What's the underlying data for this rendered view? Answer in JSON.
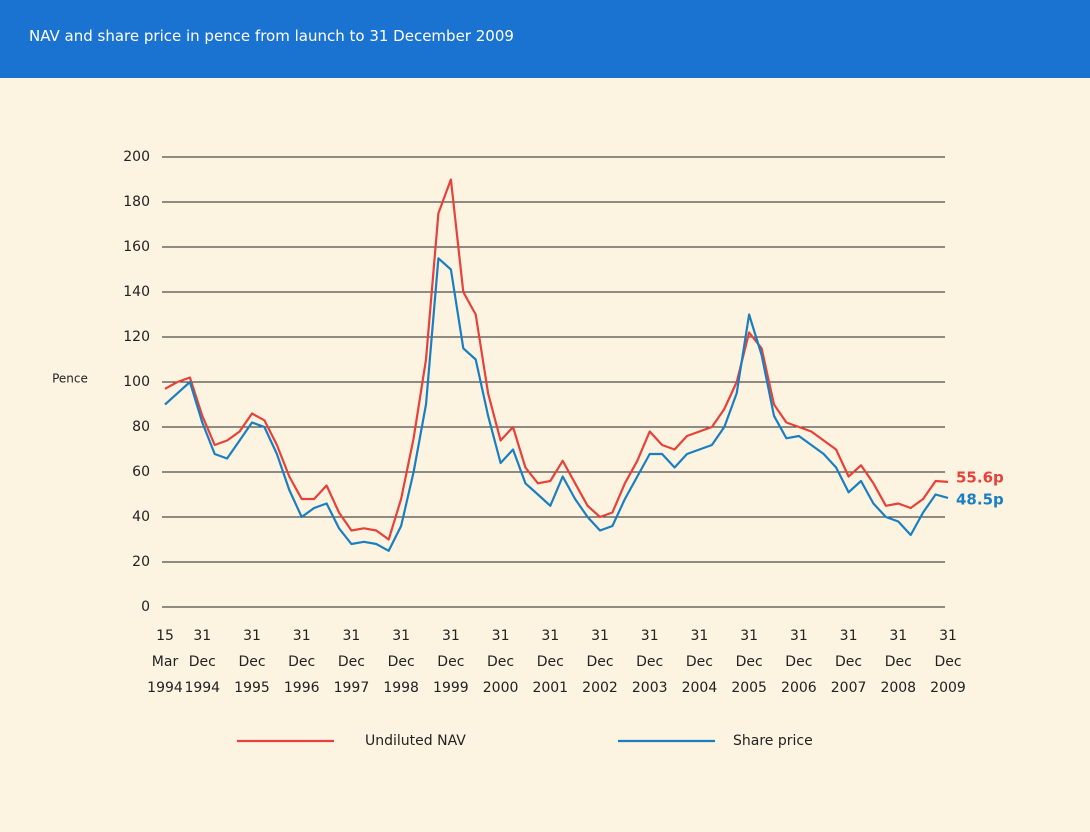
{
  "chart_data": {
    "type": "line",
    "title": "NAV and share price in pence from launch to 31 December 2009",
    "y_label": "Pence",
    "ylim": [
      0,
      200
    ],
    "yticks": [
      0,
      20,
      40,
      60,
      80,
      100,
      120,
      140,
      160,
      180,
      200
    ],
    "grid": true,
    "categories": [
      [
        "15",
        "Mar",
        "1994"
      ],
      null,
      null,
      [
        "31",
        "Dec",
        "1994"
      ],
      null,
      null,
      null,
      [
        "31",
        "Dec",
        "1995"
      ],
      null,
      null,
      null,
      [
        "31",
        "Dec",
        "1996"
      ],
      null,
      null,
      null,
      [
        "31",
        "Dec",
        "1997"
      ],
      null,
      null,
      null,
      [
        "31",
        "Dec",
        "1998"
      ],
      null,
      null,
      null,
      [
        "31",
        "Dec",
        "1999"
      ],
      null,
      null,
      null,
      [
        "31",
        "Dec",
        "2000"
      ],
      null,
      null,
      null,
      [
        "31",
        "Dec",
        "2001"
      ],
      null,
      null,
      null,
      [
        "31",
        "Dec",
        "2002"
      ],
      null,
      null,
      null,
      [
        "31",
        "Dec",
        "2003"
      ],
      null,
      null,
      null,
      [
        "31",
        "Dec",
        "2004"
      ],
      null,
      null,
      null,
      [
        "31",
        "Dec",
        "2005"
      ],
      null,
      null,
      null,
      [
        "31",
        "Dec",
        "2006"
      ],
      null,
      null,
      null,
      [
        "31",
        "Dec",
        "2007"
      ],
      null,
      null,
      null,
      [
        "31",
        "Dec",
        "2008"
      ],
      null,
      null,
      null,
      [
        "31",
        "Dec",
        "2009"
      ]
    ],
    "series": [
      {
        "name": "Undiluted NAV",
        "color": "#e8413a",
        "values": [
          97,
          100,
          102,
          85,
          72,
          74,
          78,
          86,
          83,
          72,
          58,
          48,
          48,
          54,
          42,
          34,
          35,
          34,
          30,
          48,
          75,
          110,
          175,
          190,
          140,
          130,
          95,
          74,
          80,
          62,
          55,
          56,
          65,
          55,
          45,
          40,
          42,
          55,
          65,
          78,
          72,
          70,
          76,
          78,
          80,
          88,
          100,
          122,
          115,
          90,
          82,
          80,
          78,
          74,
          70,
          58,
          63,
          55,
          45,
          46,
          44,
          48,
          56,
          55.6
        ],
        "value_labels": [
          null,
          null,
          null,
          null,
          null,
          null,
          null,
          null,
          null,
          null,
          null,
          null,
          null,
          null,
          null,
          null,
          null,
          null,
          null,
          null,
          null,
          null,
          null,
          null,
          null,
          null,
          null,
          null,
          null,
          null,
          null,
          null,
          null,
          null,
          null,
          null,
          null,
          null,
          null,
          null,
          null,
          null,
          null,
          null,
          null,
          null,
          null,
          null,
          null,
          null,
          null,
          null,
          null,
          null,
          null,
          null,
          null,
          null,
          null,
          null,
          null,
          null,
          null,
          "55.6p"
        ]
      },
      {
        "name": "Share price",
        "color": "#1a7fc1",
        "values": [
          90,
          95,
          100,
          82,
          68,
          66,
          74,
          82,
          80,
          68,
          52,
          40,
          44,
          46,
          35,
          28,
          29,
          28,
          25,
          36,
          60,
          90,
          155,
          150,
          115,
          110,
          85,
          64,
          70,
          55,
          50,
          45,
          58,
          48,
          40,
          34,
          36,
          48,
          58,
          68,
          68,
          62,
          68,
          70,
          72,
          80,
          95,
          130,
          112,
          85,
          75,
          76,
          72,
          68,
          62,
          51,
          56,
          46,
          40,
          38,
          32,
          42,
          50,
          48.5
        ],
        "value_labels": [
          null,
          null,
          null,
          null,
          null,
          null,
          null,
          null,
          null,
          null,
          null,
          null,
          null,
          null,
          null,
          null,
          null,
          null,
          null,
          null,
          null,
          null,
          null,
          null,
          null,
          null,
          null,
          null,
          null,
          null,
          null,
          null,
          null,
          null,
          null,
          null,
          null,
          null,
          null,
          null,
          null,
          null,
          null,
          null,
          null,
          null,
          null,
          null,
          null,
          null,
          null,
          null,
          null,
          null,
          null,
          null,
          null,
          null,
          null,
          null,
          null,
          null,
          null,
          "48.5p"
        ]
      }
    ]
  }
}
